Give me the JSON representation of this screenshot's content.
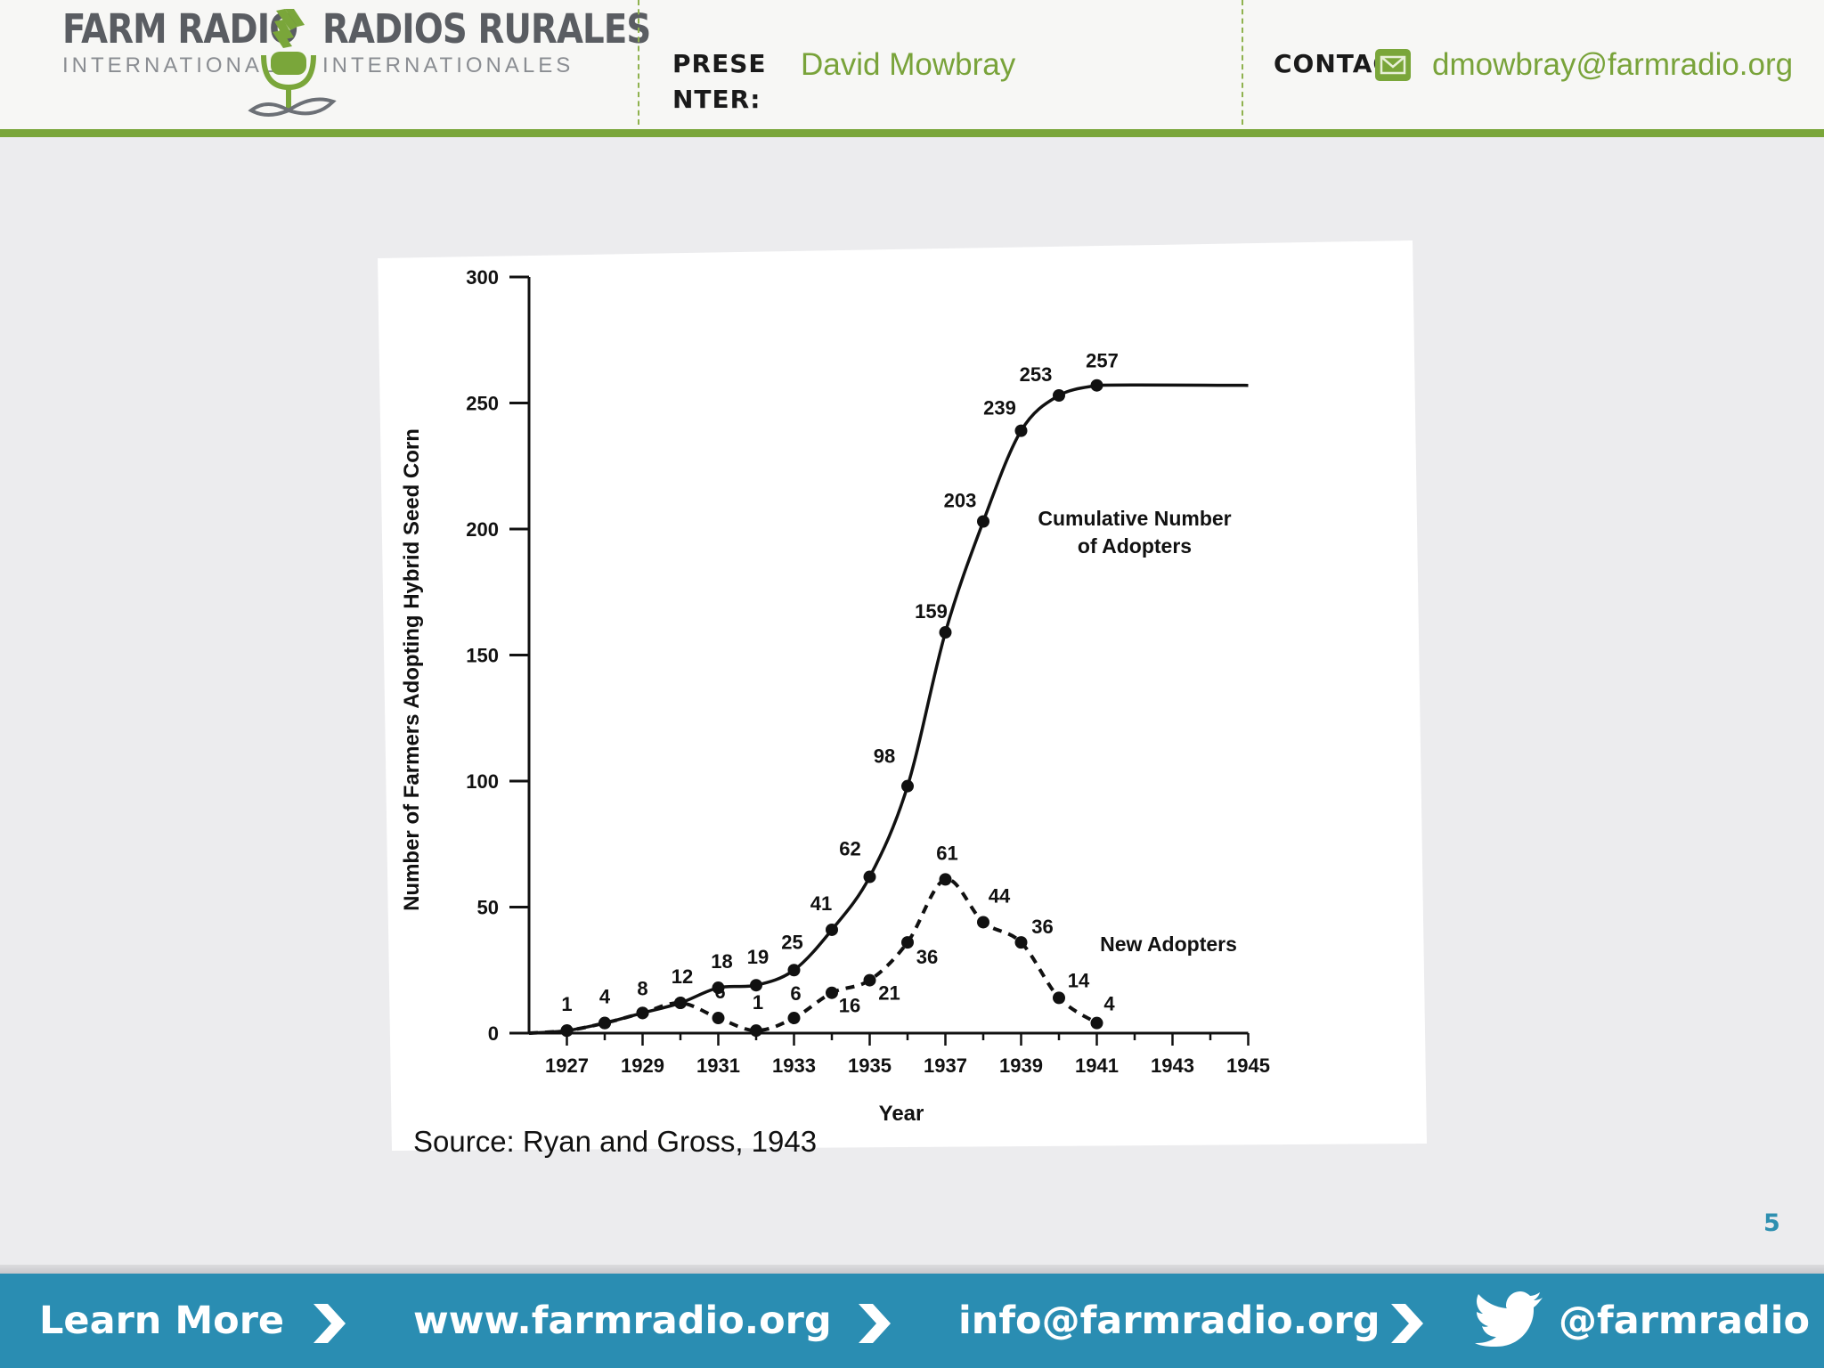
{
  "header": {
    "logo": {
      "left_name": "FARM RADIO",
      "left_sub": "INTERNATIONAL",
      "right_name": "RADIOS RURALES",
      "right_sub": "INTERNATIONALES"
    },
    "presenter_label_line1": "PRESE",
    "presenter_label_line2": "NTER:",
    "presenter_name": "David Mowbray",
    "contact_label": "CONTAC",
    "contact_email": "dmowbray@farmradio.org",
    "icons": [
      "logo-mark",
      "mail-icon"
    ]
  },
  "slide": {
    "source": "Source: Ryan and Gross, 1943",
    "page_number": "5"
  },
  "chart_data": {
    "type": "line",
    "title": "",
    "xlabel": "Year",
    "ylabel": "Number of Farmers Adopting Hybrid Seed Corn",
    "xlim": [
      1926,
      1945
    ],
    "ylim": [
      0,
      300
    ],
    "x_ticks": [
      1927,
      1929,
      1931,
      1933,
      1935,
      1937,
      1939,
      1941,
      1943,
      1945
    ],
    "y_ticks": [
      0,
      50,
      100,
      150,
      200,
      250,
      300
    ],
    "grid": false,
    "series": [
      {
        "name": "Cumulative Number of Adopters",
        "style": "solid",
        "x": [
          1927,
          1928,
          1929,
          1930,
          1931,
          1932,
          1933,
          1934,
          1935,
          1936,
          1937,
          1938,
          1939,
          1940,
          1941
        ],
        "values": [
          1,
          4,
          8,
          12,
          18,
          19,
          25,
          41,
          62,
          98,
          159,
          203,
          239,
          253,
          257
        ],
        "extends_to": 1945
      },
      {
        "name": "New Adopters",
        "style": "dashed",
        "x": [
          1927,
          1928,
          1929,
          1930,
          1931,
          1932,
          1933,
          1934,
          1935,
          1936,
          1937,
          1938,
          1939,
          1940,
          1941
        ],
        "values": [
          1,
          4,
          8,
          12,
          6,
          1,
          6,
          16,
          21,
          36,
          61,
          44,
          36,
          14,
          4
        ]
      }
    ],
    "annotations": {
      "cumulative_line1": "Cumulative Number",
      "cumulative_line2": "of Adopters",
      "new_adopters": "New Adopters"
    }
  },
  "footer": {
    "learn_more": "Learn More",
    "website": "www.farmradio.org",
    "email": "info@farmradio.org",
    "twitter": "@farmradio",
    "colors": {
      "bar": "#2a8db2",
      "accent": "#7aa63a"
    }
  }
}
